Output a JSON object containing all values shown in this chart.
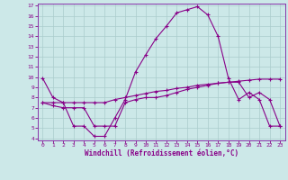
{
  "xlabel": "Windchill (Refroidissement éolien,°C)",
  "bg_color": "#cce8e8",
  "line_color": "#880088",
  "grid_color": "#aacccc",
  "spine_color": "#8833aa",
  "ylim": [
    4,
    17
  ],
  "xlim": [
    -0.5,
    23.5
  ],
  "yticks": [
    4,
    5,
    6,
    7,
    8,
    9,
    10,
    11,
    12,
    13,
    14,
    15,
    16,
    17
  ],
  "xticks": [
    0,
    1,
    2,
    3,
    4,
    5,
    6,
    7,
    8,
    9,
    10,
    11,
    12,
    13,
    14,
    15,
    16,
    17,
    18,
    19,
    20,
    21,
    22,
    23
  ],
  "series1_x": [
    0,
    1,
    2,
    3,
    4,
    5,
    6,
    7,
    8,
    9,
    10,
    11,
    12,
    13,
    14,
    15,
    16,
    17,
    18,
    19,
    20,
    21,
    22,
    23
  ],
  "series1_y": [
    9.9,
    8.0,
    7.5,
    5.2,
    5.2,
    4.2,
    4.2,
    6.0,
    7.8,
    10.5,
    12.2,
    13.8,
    15.0,
    16.3,
    16.6,
    16.9,
    16.1,
    14.0,
    9.9,
    7.8,
    8.5,
    7.8,
    5.2,
    5.2
  ],
  "series2_x": [
    0,
    1,
    2,
    3,
    4,
    5,
    6,
    7,
    8,
    9,
    10,
    11,
    12,
    13,
    14,
    15,
    16,
    17,
    18,
    19,
    20,
    21,
    22,
    23
  ],
  "series2_y": [
    7.5,
    7.5,
    7.5,
    7.5,
    7.5,
    7.5,
    7.5,
    7.8,
    8.0,
    8.2,
    8.4,
    8.6,
    8.7,
    8.9,
    9.0,
    9.2,
    9.3,
    9.4,
    9.5,
    9.6,
    9.7,
    9.8,
    9.8,
    9.8
  ],
  "series3_x": [
    0,
    1,
    2,
    3,
    4,
    5,
    6,
    7,
    8,
    9,
    10,
    11,
    12,
    13,
    14,
    15,
    16,
    17,
    18,
    19,
    20,
    21,
    22,
    23
  ],
  "series3_y": [
    7.5,
    7.2,
    7.0,
    7.0,
    7.0,
    5.2,
    5.2,
    5.2,
    7.5,
    7.8,
    8.0,
    8.0,
    8.2,
    8.5,
    8.8,
    9.0,
    9.2,
    9.4,
    9.5,
    9.5,
    8.0,
    8.5,
    7.8,
    5.2
  ]
}
